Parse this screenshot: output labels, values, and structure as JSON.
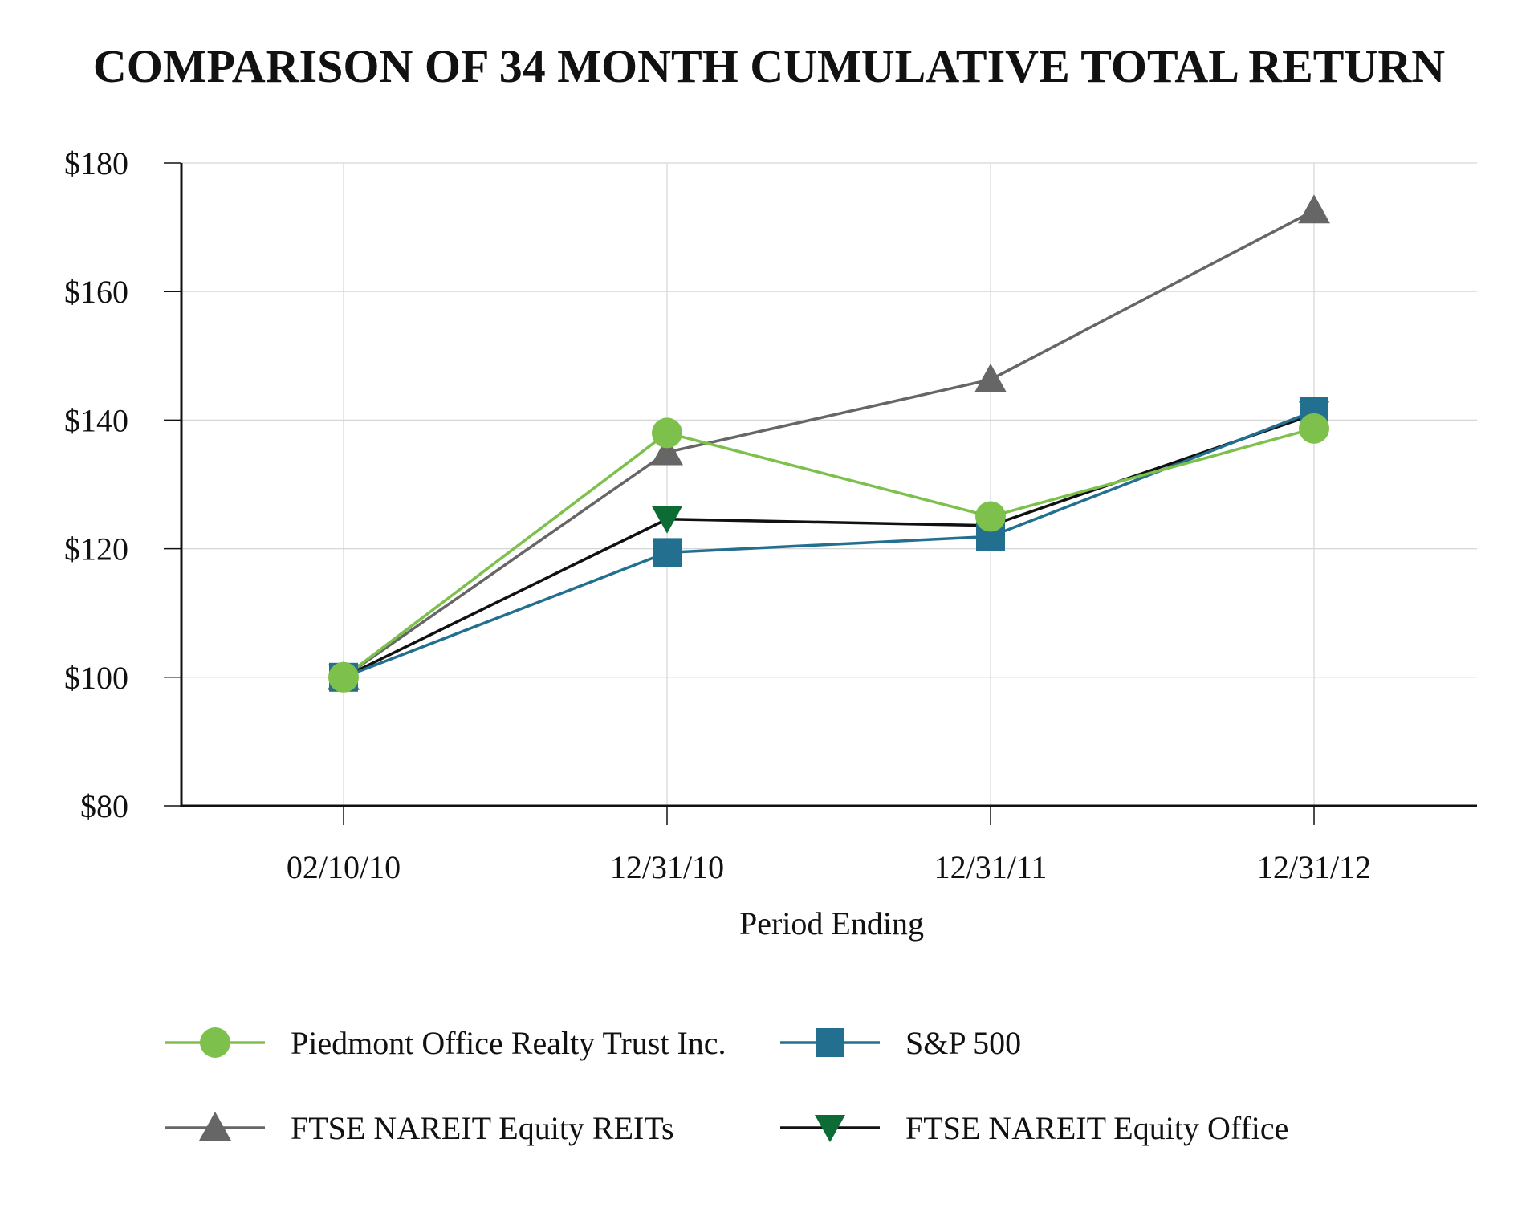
{
  "chart_data": {
    "type": "line",
    "title": "COMPARISON OF 34 MONTH CUMULATIVE TOTAL RETURN",
    "xlabel": "Period Ending",
    "ylabel": "",
    "categories": [
      "02/10/10",
      "12/31/10",
      "12/31/11",
      "12/31/12"
    ],
    "ylim": [
      80,
      180
    ],
    "yticks": [
      80,
      100,
      120,
      140,
      160,
      180
    ],
    "ytick_labels": [
      "$80",
      "$100",
      "$120",
      "$140",
      "$160",
      "$180"
    ],
    "grid": true,
    "legend_position": "bottom",
    "series": [
      {
        "key": "piedmont",
        "name": "Piedmont Office Realty Trust Inc.",
        "values": [
          100,
          138,
          125,
          138.7
        ],
        "color": "#7dc04b",
        "marker": "circle"
      },
      {
        "key": "sp500",
        "name": "S&P 500",
        "values": [
          100,
          119.4,
          121.9,
          141.4
        ],
        "color": "#236f90",
        "marker": "square"
      },
      {
        "key": "reits",
        "name": "FTSE NAREIT Equity REITs",
        "values": [
          100,
          135,
          146.3,
          172.6
        ],
        "color": "#666666",
        "marker": "triangle-up"
      },
      {
        "key": "office",
        "name": "FTSE NAREIT Equity Office",
        "values": [
          100,
          124.6,
          123.6,
          140.9
        ],
        "color": "#111111",
        "marker_color": "#0d6b35",
        "marker": "triangle-down"
      }
    ]
  }
}
